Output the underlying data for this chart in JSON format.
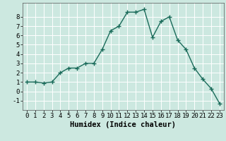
{
  "x": [
    0,
    1,
    2,
    3,
    4,
    5,
    6,
    7,
    8,
    9,
    10,
    11,
    12,
    13,
    14,
    15,
    16,
    17,
    18,
    19,
    20,
    21,
    22,
    23
  ],
  "y": [
    1.0,
    1.0,
    0.9,
    1.0,
    2.0,
    2.5,
    2.5,
    3.0,
    3.0,
    4.5,
    6.5,
    7.0,
    8.5,
    8.5,
    8.8,
    5.8,
    7.5,
    8.0,
    5.5,
    4.5,
    2.5,
    1.3,
    0.3,
    -1.3
  ],
  "line_color": "#1a6b5a",
  "marker": "+",
  "marker_size": 4,
  "linewidth": 1.0,
  "xlabel": "Humidex (Indice chaleur)",
  "xlim": [
    -0.5,
    23.5
  ],
  "ylim": [
    -2.0,
    9.5
  ],
  "yticks": [
    -1,
    0,
    1,
    2,
    3,
    4,
    5,
    6,
    7,
    8
  ],
  "xtick_labels": [
    "0",
    "1",
    "2",
    "3",
    "4",
    "5",
    "6",
    "7",
    "8",
    "9",
    "10",
    "11",
    "12",
    "13",
    "14",
    "15",
    "16",
    "17",
    "18",
    "19",
    "20",
    "21",
    "22",
    "23"
  ],
  "bg_color": "#cce8e0",
  "grid_color": "#ffffff",
  "tick_fontsize": 6.5,
  "xlabel_fontsize": 7.5
}
